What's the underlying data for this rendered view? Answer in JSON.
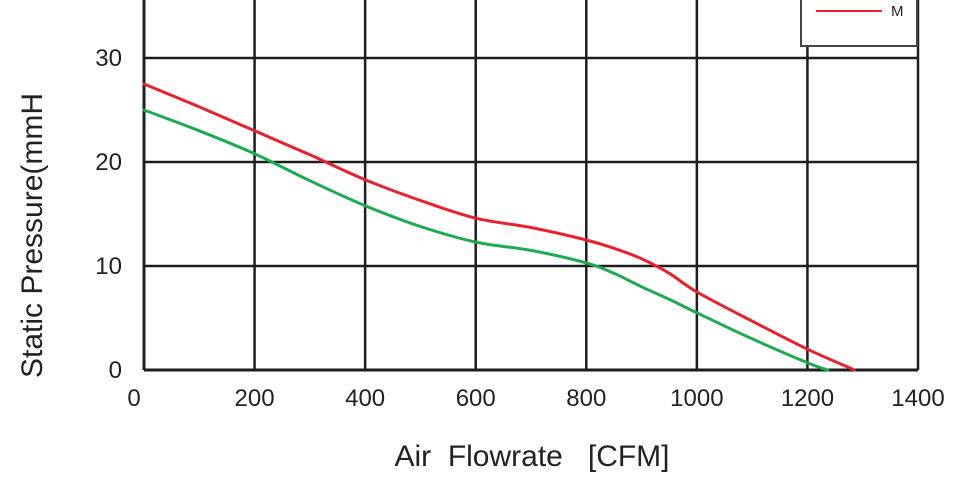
{
  "chart_data": {
    "type": "line",
    "xlabel": "Air  Flowrate   [CFM]",
    "ylabel": "Static Pressure(mmH",
    "xlim": [
      0,
      1400
    ],
    "ylim": [
      0,
      35
    ],
    "x_ticks": [
      "0",
      "200",
      "400",
      "600",
      "800",
      "1000",
      "1200",
      "1400"
    ],
    "y_ticks": [
      "0",
      "10",
      "20",
      "30"
    ],
    "grid": true,
    "legend_position": "top-right",
    "series": [
      {
        "name": "M",
        "color": "#e8212e",
        "x": [
          0,
          100,
          200,
          300,
          400,
          500,
          600,
          700,
          800,
          850,
          900,
          950,
          1000,
          1100,
          1200,
          1285
        ],
        "y": [
          27.5,
          25.3,
          23.0,
          20.7,
          18.3,
          16.3,
          14.6,
          13.7,
          12.5,
          11.7,
          10.7,
          9.3,
          7.5,
          4.7,
          2.0,
          0
        ]
      },
      {
        "name": "",
        "color": "#1faa52",
        "x": [
          0,
          100,
          200,
          300,
          400,
          500,
          600,
          700,
          800,
          850,
          900,
          950,
          1000,
          1100,
          1200,
          1237
        ],
        "y": [
          25.0,
          23.0,
          20.8,
          18.2,
          15.8,
          13.8,
          12.3,
          11.5,
          10.3,
          9.3,
          8.0,
          6.8,
          5.5,
          3.0,
          0.7,
          0
        ]
      }
    ]
  }
}
